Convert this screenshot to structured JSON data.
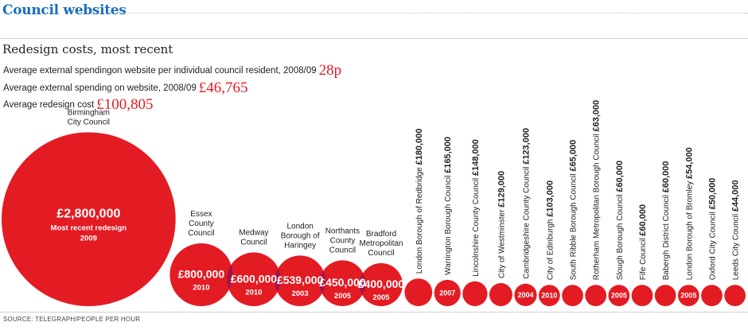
{
  "title": "Council websites",
  "subtitle": "Redesign costs, most recent",
  "stats": [
    {
      "label": "Average external spendingon website per individual council resident, 2008/09",
      "value": "28p"
    },
    {
      "label": "Average external spending on website, 2008/09",
      "value": "£46,765"
    },
    {
      "label": "Average redesign cost",
      "value": "£100,805"
    }
  ],
  "source": "SOURCE: TELEGRAPH/PEOPLE PER HOUR",
  "colors": {
    "bubble": "#e31b23",
    "overlap": "#a3154a",
    "title": "#1a6fbf"
  },
  "chart_data": {
    "type": "bubble",
    "title": "Redesign costs, most recent",
    "items": [
      {
        "name": "Birmingham City Council",
        "label_lines": [
          "Birmingham",
          "City Council"
        ],
        "value": 2800000,
        "value_label": "£2,800,000",
        "year": "2009",
        "note": "Most recent redesign"
      },
      {
        "name": "Essex County Council",
        "label_lines": [
          "Essex",
          "County",
          "Council"
        ],
        "value": 800000,
        "value_label": "£800,000",
        "year": "2010"
      },
      {
        "name": "Medway Council",
        "label_lines": [
          "Medway",
          "Council"
        ],
        "value": 600000,
        "value_label": "£600,000",
        "year": "2010"
      },
      {
        "name": "London Borough of Haringey",
        "label_lines": [
          "London",
          "Borough of",
          "Haringey"
        ],
        "value": 539000,
        "value_label": "£539,000",
        "year": "2003"
      },
      {
        "name": "Northants County Council",
        "label_lines": [
          "Northants",
          "County",
          "Council"
        ],
        "value": 450000,
        "value_label": "£450,000",
        "year": "2005"
      },
      {
        "name": "Bradford Metropolitan Council",
        "label_lines": [
          "Bradford",
          "Metropolitan",
          "Council"
        ],
        "value": 400000,
        "value_label": "£400,000",
        "year": "2005"
      },
      {
        "name": "London Borough of Redbridge",
        "value": 180000,
        "value_label": "£180,000",
        "year": ""
      },
      {
        "name": "Warrington Borough Council",
        "value": 165000,
        "value_label": "£165,000",
        "year": "2007"
      },
      {
        "name": "Lincolnshire County Council",
        "value": 148000,
        "value_label": "£148,000",
        "year": ""
      },
      {
        "name": "City of Westminster",
        "value": 129000,
        "value_label": "£129,000",
        "year": ""
      },
      {
        "name": "Cambridgeshire County Council",
        "value": 123000,
        "value_label": "£123,000",
        "year": "2004"
      },
      {
        "name": "City of Edinburgh",
        "value": 103000,
        "value_label": "£103,000",
        "year": "2010"
      },
      {
        "name": "South Ribble Borough Council",
        "value": 65000,
        "value_label": "£65,000",
        "year": ""
      },
      {
        "name": "Rotherham Metropolitan Borough Council",
        "value": 63000,
        "value_label": "£63,000",
        "year": ""
      },
      {
        "name": "Slough Borough Council",
        "value": 60000,
        "value_label": "£60,000",
        "year": "2005"
      },
      {
        "name": "Fife Council",
        "value": 60000,
        "value_label": "£60,000",
        "year": ""
      },
      {
        "name": "Babergh District Council",
        "value": 60000,
        "value_label": "£60,000",
        "year": ""
      },
      {
        "name": "London Borough of Bromley",
        "value": 54000,
        "value_label": "£54,000",
        "year": "2005"
      },
      {
        "name": "Oxford City Council",
        "value": 50000,
        "value_label": "£50,000",
        "year": ""
      },
      {
        "name": "Leeds City Council",
        "value": 44000,
        "value_label": "£44,000",
        "year": ""
      }
    ]
  }
}
